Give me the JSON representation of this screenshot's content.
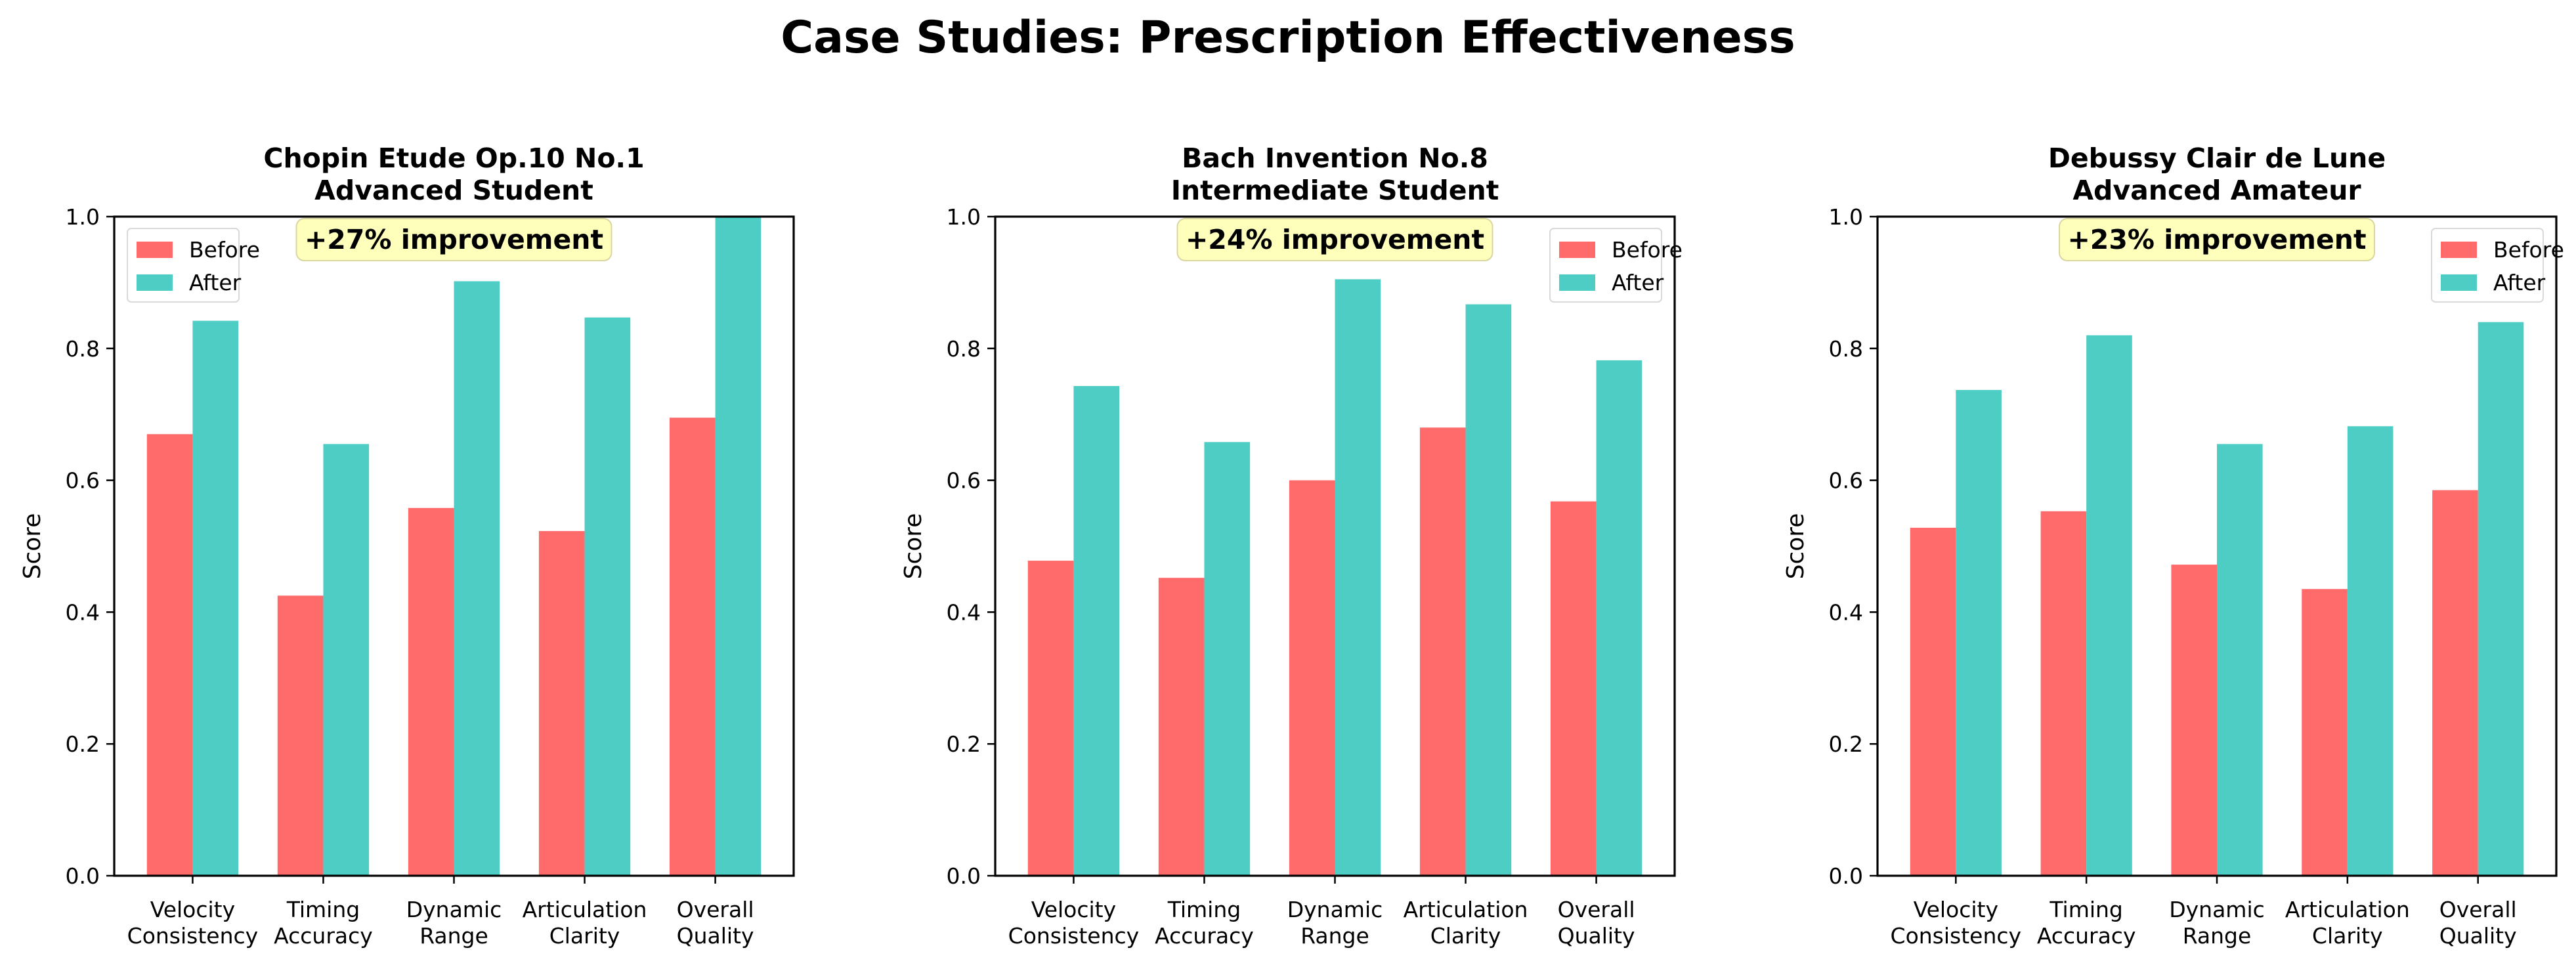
{
  "figure": {
    "suptitle": "Case Studies: Prescription Effectiveness"
  },
  "colors": {
    "before": "#ff6b6b",
    "after": "#4ecdc4",
    "annotation_bg": "#ffffb0",
    "annotation_border": "#d9d6a0"
  },
  "chart_data": [
    {
      "type": "bar",
      "title_lines": [
        "Chopin Etude Op.10 No.1",
        "Advanced Student"
      ],
      "categories": [
        [
          "Velocity",
          "Consistency"
        ],
        [
          "Timing",
          "Accuracy"
        ],
        [
          "Dynamic",
          "Range"
        ],
        [
          "Articulation",
          "Clarity"
        ],
        [
          "Overall",
          "Quality"
        ]
      ],
      "series": [
        {
          "name": "Before",
          "values": [
            0.67,
            0.425,
            0.558,
            0.523,
            0.695
          ]
        },
        {
          "name": "After",
          "values": [
            0.842,
            0.655,
            0.902,
            0.847,
            1.0
          ]
        }
      ],
      "ylabel": "Score",
      "ylim": [
        0,
        1
      ],
      "yticks": [
        "0.0",
        "0.2",
        "0.4",
        "0.6",
        "0.8",
        "1.0"
      ],
      "legend_position": "upper left",
      "annotation": "+27% improvement"
    },
    {
      "type": "bar",
      "title_lines": [
        "Bach Invention No.8",
        "Intermediate Student"
      ],
      "categories": [
        [
          "Velocity",
          "Consistency"
        ],
        [
          "Timing",
          "Accuracy"
        ],
        [
          "Dynamic",
          "Range"
        ],
        [
          "Articulation",
          "Clarity"
        ],
        [
          "Overall",
          "Quality"
        ]
      ],
      "series": [
        {
          "name": "Before",
          "values": [
            0.478,
            0.452,
            0.6,
            0.68,
            0.568
          ]
        },
        {
          "name": "After",
          "values": [
            0.743,
            0.658,
            0.905,
            0.867,
            0.782
          ]
        }
      ],
      "ylabel": "Score",
      "ylim": [
        0,
        1
      ],
      "yticks": [
        "0.0",
        "0.2",
        "0.4",
        "0.6",
        "0.8",
        "1.0"
      ],
      "legend_position": "upper right",
      "annotation": "+24% improvement"
    },
    {
      "type": "bar",
      "title_lines": [
        "Debussy Clair de Lune",
        "Advanced Amateur"
      ],
      "categories": [
        [
          "Velocity",
          "Consistency"
        ],
        [
          "Timing",
          "Accuracy"
        ],
        [
          "Dynamic",
          "Range"
        ],
        [
          "Articulation",
          "Clarity"
        ],
        [
          "Overall",
          "Quality"
        ]
      ],
      "series": [
        {
          "name": "Before",
          "values": [
            0.528,
            0.553,
            0.472,
            0.435,
            0.585
          ]
        },
        {
          "name": "After",
          "values": [
            0.737,
            0.82,
            0.655,
            0.682,
            0.84
          ]
        }
      ],
      "ylabel": "Score",
      "ylim": [
        0,
        1
      ],
      "yticks": [
        "0.0",
        "0.2",
        "0.4",
        "0.6",
        "0.8",
        "1.0"
      ],
      "legend_position": "upper right",
      "annotation": "+23% improvement"
    }
  ]
}
